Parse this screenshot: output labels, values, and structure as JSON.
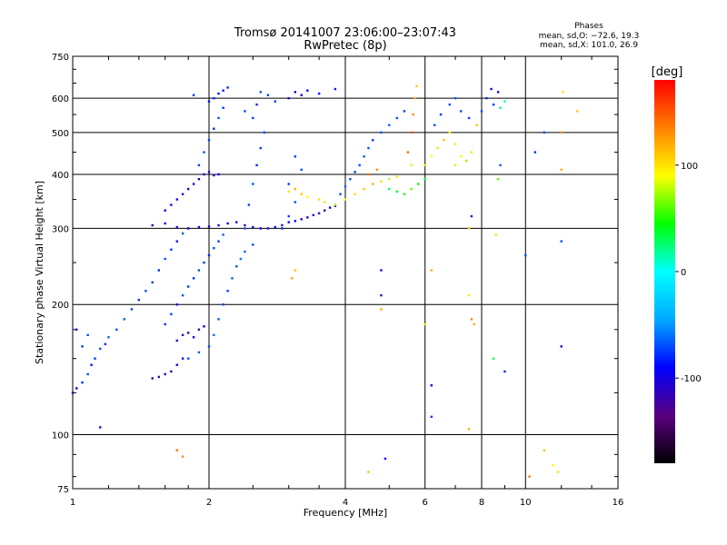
{
  "chart_data": {
    "type": "scatter",
    "title_line1": "Tromsø 20141007 23:06:00–23:07:43",
    "title_line2": "RwPretec (8p)",
    "xlabel": "Frequency [MHz]",
    "ylabel": "Stationary phase Virtual Height [km]",
    "x_scale": "log",
    "y_scale": "log",
    "xlim": [
      1,
      16
    ],
    "ylim": [
      75,
      750
    ],
    "x_ticks": [
      1,
      2,
      4,
      6,
      8,
      10,
      16
    ],
    "y_ticks": [
      75,
      100,
      200,
      300,
      400,
      500,
      600,
      750
    ],
    "grid": true,
    "x_gridlines": [
      2,
      4,
      6,
      8,
      10
    ],
    "y_gridlines": [
      100,
      200,
      300,
      400,
      500,
      600
    ],
    "phases_legend": {
      "title": "Phases",
      "line1": "mean, sd,O: −72.6, 19.3",
      "line2": "mean, sd,X: 101.0, 26.9",
      "placement": "top-right"
    },
    "colorbar": {
      "label": "[deg]",
      "range": [
        -180,
        180
      ],
      "ticks": [
        100,
        0,
        -100
      ],
      "colormap": [
        "#000000",
        "#5a0080",
        "#0000ff",
        "#00aaff",
        "#00ffff",
        "#00ff00",
        "#ffff00",
        "#ff8000",
        "#ff0000"
      ]
    },
    "series": [
      {
        "values": [
          [
            1.0,
            125,
            -110
          ],
          [
            1.02,
            128,
            -90
          ],
          [
            1.05,
            132,
            -80
          ],
          [
            1.08,
            138,
            -70
          ],
          [
            1.1,
            145,
            -85
          ],
          [
            1.12,
            150,
            -75
          ],
          [
            1.15,
            158,
            -70
          ],
          [
            1.18,
            162,
            -80
          ],
          [
            1.2,
            168,
            -65
          ],
          [
            1.05,
            160,
            -75
          ],
          [
            1.08,
            170,
            -70
          ],
          [
            1.02,
            175,
            -85
          ],
          [
            1.25,
            175,
            -70
          ],
          [
            1.3,
            185,
            -65
          ],
          [
            1.35,
            195,
            -75
          ],
          [
            1.4,
            205,
            -80
          ],
          [
            1.45,
            215,
            -70
          ],
          [
            1.5,
            225,
            -75
          ],
          [
            1.55,
            240,
            -80
          ],
          [
            1.6,
            255,
            -70
          ],
          [
            1.65,
            268,
            -75
          ],
          [
            1.7,
            280,
            -85
          ],
          [
            1.75,
            292,
            -70
          ],
          [
            1.8,
            300,
            -80
          ],
          [
            1.5,
            135,
            -110
          ],
          [
            1.55,
            136,
            -115
          ],
          [
            1.6,
            138,
            -105
          ],
          [
            1.65,
            140,
            -110
          ],
          [
            1.7,
            145,
            -100
          ],
          [
            1.75,
            150,
            -105
          ],
          [
            1.7,
            165,
            -110
          ],
          [
            1.75,
            170,
            -115
          ],
          [
            1.8,
            172,
            -105
          ],
          [
            1.85,
            168,
            -100
          ],
          [
            1.9,
            175,
            -110
          ],
          [
            1.95,
            178,
            -95
          ],
          [
            1.6,
            180,
            -80
          ],
          [
            1.65,
            190,
            -75
          ],
          [
            1.7,
            200,
            -85
          ],
          [
            1.75,
            210,
            -70
          ],
          [
            1.8,
            220,
            -75
          ],
          [
            1.85,
            230,
            -80
          ],
          [
            1.9,
            240,
            -70
          ],
          [
            1.95,
            250,
            -75
          ],
          [
            2.0,
            260,
            -80
          ],
          [
            2.05,
            270,
            -70
          ],
          [
            2.1,
            280,
            -75
          ],
          [
            2.15,
            290,
            -65
          ],
          [
            1.8,
            150,
            -70
          ],
          [
            1.9,
            155,
            -65
          ],
          [
            2.0,
            160,
            -70
          ],
          [
            2.05,
            170,
            -60
          ],
          [
            2.1,
            185,
            -65
          ],
          [
            2.15,
            200,
            -70
          ],
          [
            2.2,
            215,
            -75
          ],
          [
            2.25,
            230,
            -65
          ],
          [
            2.3,
            245,
            -70
          ],
          [
            2.35,
            255,
            -60
          ],
          [
            2.4,
            265,
            -65
          ],
          [
            2.5,
            275,
            -70
          ],
          [
            1.5,
            305,
            -95
          ],
          [
            1.6,
            308,
            -100
          ],
          [
            1.7,
            302,
            -105
          ],
          [
            1.8,
            300,
            -110
          ],
          [
            1.9,
            302,
            -100
          ],
          [
            2.0,
            303,
            -105
          ],
          [
            2.1,
            305,
            -100
          ],
          [
            2.2,
            308,
            -95
          ],
          [
            2.3,
            310,
            -100
          ],
          [
            2.4,
            305,
            -105
          ],
          [
            2.5,
            302,
            -100
          ],
          [
            2.6,
            300,
            -95
          ],
          [
            2.7,
            300,
            -100
          ],
          [
            2.8,
            302,
            -105
          ],
          [
            2.9,
            305,
            -110
          ],
          [
            3.0,
            310,
            -105
          ],
          [
            3.1,
            312,
            -100
          ],
          [
            3.2,
            315,
            -110
          ],
          [
            3.3,
            318,
            -105
          ],
          [
            3.4,
            322,
            -100
          ],
          [
            3.5,
            325,
            -110
          ],
          [
            3.6,
            330,
            -105
          ],
          [
            3.7,
            335,
            -100
          ],
          [
            3.8,
            338,
            -110
          ],
          [
            1.6,
            330,
            -100
          ],
          [
            1.65,
            340,
            -105
          ],
          [
            1.7,
            350,
            -95
          ],
          [
            1.75,
            360,
            -100
          ],
          [
            1.8,
            370,
            -105
          ],
          [
            1.85,
            380,
            -110
          ],
          [
            1.9,
            390,
            -100
          ],
          [
            1.95,
            400,
            -105
          ],
          [
            2.0,
            405,
            -110
          ],
          [
            2.05,
            398,
            -100
          ],
          [
            2.1,
            400,
            -95
          ],
          [
            1.9,
            420,
            -75
          ],
          [
            1.95,
            450,
            -70
          ],
          [
            2.0,
            480,
            -75
          ],
          [
            2.05,
            510,
            -80
          ],
          [
            2.1,
            540,
            -70
          ],
          [
            2.15,
            570,
            -75
          ],
          [
            2.0,
            590,
            -85
          ],
          [
            2.05,
            600,
            -80
          ],
          [
            2.1,
            615,
            -90
          ],
          [
            2.15,
            625,
            -85
          ],
          [
            2.2,
            635,
            -80
          ],
          [
            1.85,
            610,
            -75
          ],
          [
            2.4,
            300,
            -70
          ],
          [
            2.45,
            340,
            -75
          ],
          [
            2.5,
            380,
            -70
          ],
          [
            2.55,
            420,
            -80
          ],
          [
            2.6,
            460,
            -75
          ],
          [
            2.65,
            500,
            -70
          ],
          [
            2.5,
            540,
            -75
          ],
          [
            2.55,
            580,
            -80
          ],
          [
            2.6,
            620,
            -70
          ],
          [
            2.7,
            610,
            -75
          ],
          [
            2.4,
            560,
            -70
          ],
          [
            2.8,
            590,
            -75
          ],
          [
            2.9,
            300,
            -80
          ],
          [
            3.0,
            320,
            -75
          ],
          [
            3.1,
            345,
            -70
          ],
          [
            3.0,
            380,
            -75
          ],
          [
            3.2,
            410,
            -70
          ],
          [
            3.1,
            440,
            -75
          ],
          [
            3.0,
            600,
            -110
          ],
          [
            3.1,
            620,
            -105
          ],
          [
            3.2,
            610,
            -100
          ],
          [
            3.3,
            625,
            -95
          ],
          [
            3.5,
            615,
            -90
          ],
          [
            3.8,
            630,
            -85
          ],
          [
            3.0,
            365,
            100
          ],
          [
            3.1,
            370,
            120
          ],
          [
            3.2,
            360,
            110
          ],
          [
            3.3,
            355,
            90
          ],
          [
            3.05,
            230,
            120
          ],
          [
            3.1,
            240,
            110
          ],
          [
            3.5,
            350,
            100
          ],
          [
            3.6,
            345,
            80
          ],
          [
            3.8,
            340,
            70
          ],
          [
            4.0,
            350,
            90
          ],
          [
            4.2,
            360,
            100
          ],
          [
            4.4,
            370,
            110
          ],
          [
            4.6,
            380,
            120
          ],
          [
            4.8,
            385,
            100
          ],
          [
            5.0,
            390,
            80
          ],
          [
            5.2,
            395,
            100
          ],
          [
            4.5,
            400,
            140
          ],
          [
            4.7,
            410,
            130
          ],
          [
            3.9,
            360,
            -70
          ],
          [
            4.0,
            375,
            -65
          ],
          [
            4.1,
            390,
            -70
          ],
          [
            4.2,
            405,
            -75
          ],
          [
            4.3,
            420,
            -70
          ],
          [
            4.4,
            440,
            -65
          ],
          [
            4.5,
            460,
            -70
          ],
          [
            4.6,
            480,
            -75
          ],
          [
            4.8,
            500,
            -70
          ],
          [
            5.0,
            520,
            -65
          ],
          [
            5.2,
            540,
            -70
          ],
          [
            5.4,
            560,
            -75
          ],
          [
            5.0,
            370,
            30
          ],
          [
            5.2,
            365,
            40
          ],
          [
            5.4,
            360,
            50
          ],
          [
            5.6,
            370,
            60
          ],
          [
            5.8,
            380,
            45
          ],
          [
            6.0,
            390,
            35
          ],
          [
            5.5,
            450,
            140
          ],
          [
            5.6,
            500,
            150
          ],
          [
            5.65,
            550,
            130
          ],
          [
            5.7,
            600,
            120
          ],
          [
            5.75,
            640,
            110
          ],
          [
            5.6,
            420,
            100
          ],
          [
            6.0,
            420,
            80
          ],
          [
            6.2,
            440,
            90
          ],
          [
            6.4,
            460,
            100
          ],
          [
            6.6,
            480,
            110
          ],
          [
            6.8,
            500,
            90
          ],
          [
            7.0,
            470,
            100
          ],
          [
            6.3,
            520,
            -70
          ],
          [
            6.5,
            550,
            -75
          ],
          [
            6.8,
            580,
            -70
          ],
          [
            7.0,
            600,
            -65
          ],
          [
            7.2,
            560,
            -70
          ],
          [
            7.5,
            540,
            -75
          ],
          [
            7.0,
            420,
            80
          ],
          [
            7.2,
            440,
            90
          ],
          [
            7.4,
            430,
            70
          ],
          [
            7.6,
            450,
            100
          ],
          [
            7.8,
            520,
            110
          ],
          [
            8.0,
            560,
            -70
          ],
          [
            8.2,
            600,
            -80
          ],
          [
            8.5,
            580,
            -75
          ],
          [
            8.8,
            570,
            20
          ],
          [
            9.0,
            590,
            10
          ],
          [
            8.7,
            620,
            -100
          ],
          [
            8.4,
            630,
            -110
          ],
          [
            6.2,
            110,
            -75
          ],
          [
            6.2,
            130,
            -90
          ],
          [
            6.2,
            240,
            120
          ],
          [
            6.0,
            180,
            100
          ],
          [
            7.5,
            300,
            100
          ],
          [
            7.6,
            320,
            -120
          ],
          [
            7.5,
            210,
            100
          ],
          [
            7.7,
            180,
            120
          ],
          [
            8.5,
            150,
            30
          ],
          [
            8.6,
            290,
            80
          ],
          [
            8.7,
            390,
            60
          ],
          [
            8.8,
            420,
            -70
          ],
          [
            9.0,
            140,
            -80
          ],
          [
            10.0,
            260,
            -70
          ],
          [
            10.5,
            450,
            -75
          ],
          [
            11.0,
            500,
            -70
          ],
          [
            12.0,
            160,
            -110
          ],
          [
            12.0,
            280,
            -70
          ],
          [
            12.0,
            410,
            120
          ],
          [
            12.0,
            500,
            130
          ],
          [
            12.1,
            620,
            100
          ],
          [
            13.0,
            560,
            110
          ],
          [
            4.8,
            240,
            -110
          ],
          [
            4.8,
            210,
            -120
          ],
          [
            4.8,
            195,
            120
          ],
          [
            4.9,
            88,
            -90
          ],
          [
            4.5,
            82,
            110
          ],
          [
            1.7,
            92,
            140
          ],
          [
            1.75,
            89,
            130
          ],
          [
            10.2,
            80,
            140
          ],
          [
            11.0,
            92,
            110
          ],
          [
            11.5,
            85,
            90
          ],
          [
            1.15,
            104,
            -110
          ],
          [
            11.8,
            82,
            100
          ],
          [
            7.5,
            103,
            120
          ],
          [
            7.6,
            185,
            130
          ]
        ]
      }
    ]
  }
}
